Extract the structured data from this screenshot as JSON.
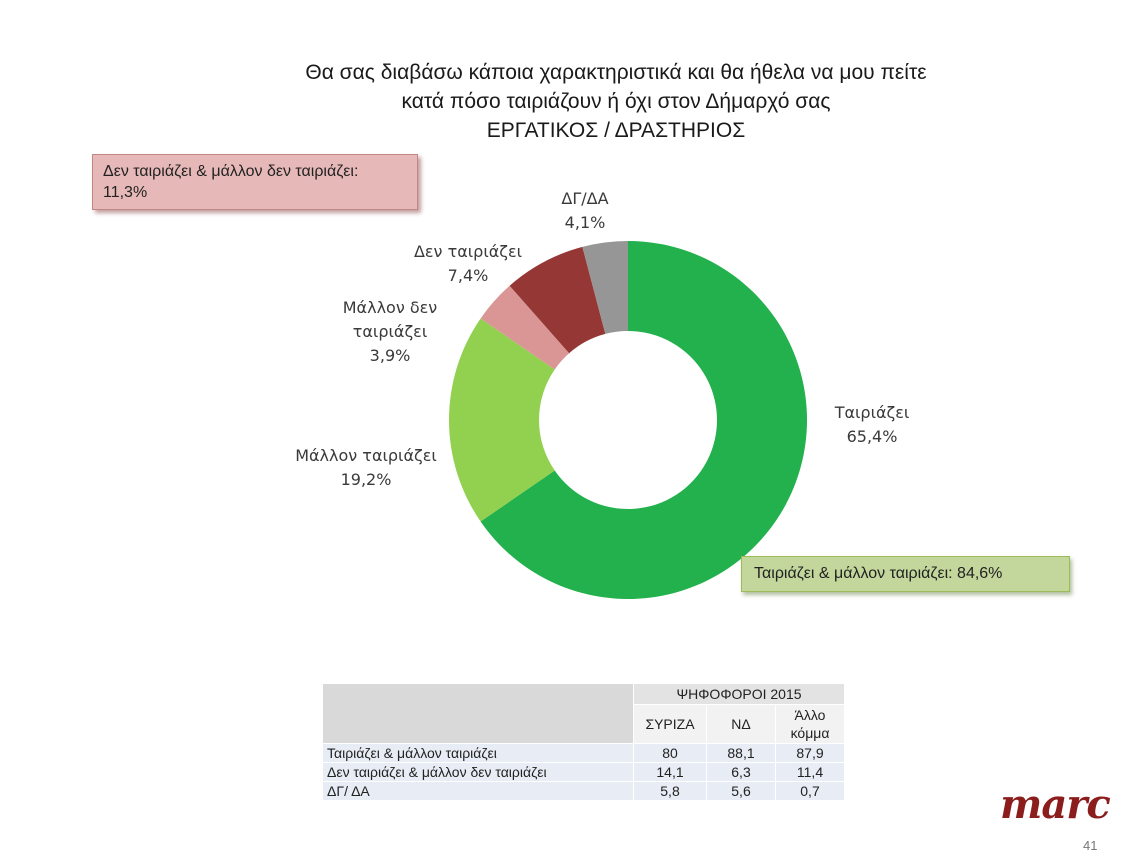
{
  "title": {
    "line1": "Θα σας διαβάσω κάποια χαρακτηριστικά και θα ήθελα να μου πείτε",
    "line2": "κατά πόσο ταιριάζουν ή όχι στον Δήμαρχό σας",
    "line3": "ΕΡΓΑΤΙΚΟΣ / ΔΡΑΣΤΗΡΙΟΣ"
  },
  "callouts": {
    "negative": {
      "line1": "Δεν ταιριάζει & μάλλον δεν ταιριάζει:",
      "line2": "11,3%"
    },
    "positive": "Ταιριάζει & μάλλον ταιριάζει: 84,6%"
  },
  "chart_data": {
    "type": "pie",
    "donut": true,
    "categories": [
      "Ταιριάζει",
      "Μάλλον ταιριάζει",
      "Μάλλον δεν ταιριάζει",
      "Δεν ταιριάζει",
      "ΔΓ/ΔΑ"
    ],
    "values": [
      65.4,
      19.2,
      3.9,
      7.4,
      4.1
    ],
    "colors": [
      "#22b14c",
      "#92d050",
      "#da9694",
      "#953735",
      "#969696"
    ],
    "labels": [
      {
        "lines": [
          "Ταιριάζει",
          "65,4%"
        ]
      },
      {
        "lines": [
          "Μάλλον ταιριάζει",
          "19,2%"
        ]
      },
      {
        "lines": [
          "Μάλλον δεν",
          "ταιριάζει",
          "3,9%"
        ]
      },
      {
        "lines": [
          "Δεν ταιριάζει",
          "7,4%"
        ]
      },
      {
        "lines": [
          "ΔΓ/ΔΑ",
          "4,1%"
        ]
      }
    ]
  },
  "table": {
    "group_header": "ΨΗΦΟΦΟΡΟΙ 2015",
    "columns": [
      "ΣΥΡΙΖΑ",
      "ΝΔ",
      "Άλλο κόμμα"
    ],
    "rows": [
      {
        "label": "Ταιριάζει & μάλλον ταιριάζει",
        "values": [
          "80",
          "88,1",
          "87,9"
        ]
      },
      {
        "label": "Δεν ταιριάζει & μάλλον δεν ταιριάζει",
        "values": [
          "14,1",
          "6,3",
          "11,4"
        ]
      },
      {
        "label": "ΔΓ/ ΔΑ",
        "values": [
          "5,8",
          "5,6",
          "0,7"
        ]
      }
    ]
  },
  "logo": "marc",
  "page_number": "41"
}
